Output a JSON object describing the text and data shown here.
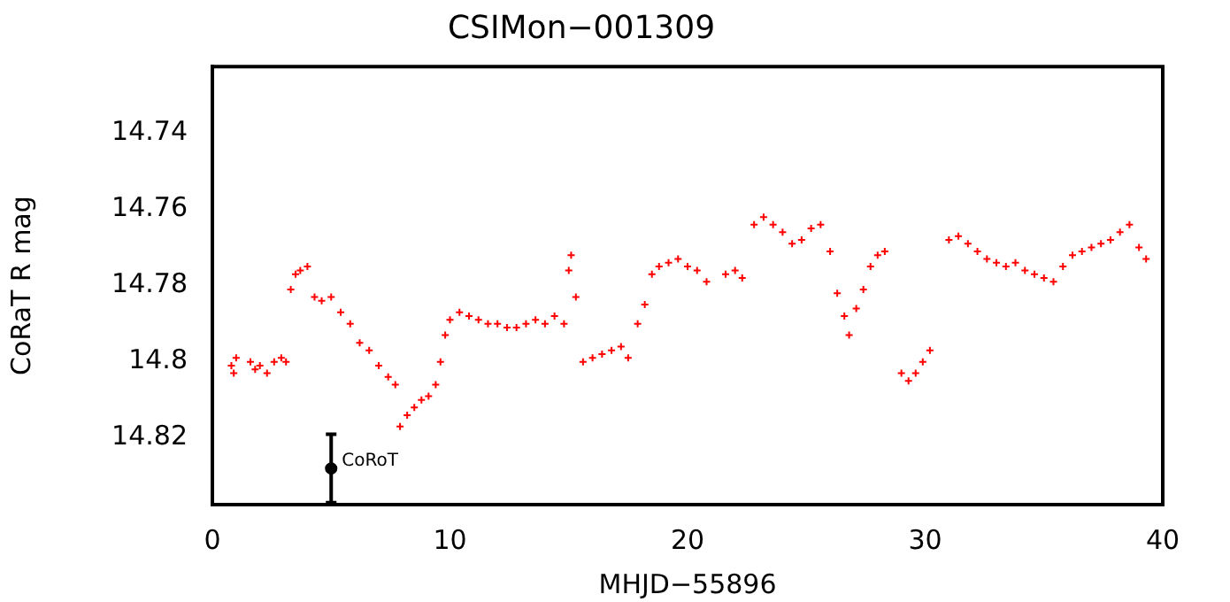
{
  "chart_data": {
    "type": "scatter",
    "title": "CSIMon−001309",
    "xlabel": "MHJD−55896",
    "ylabel": "CoRaT R mag",
    "xlim": [
      0,
      40
    ],
    "xticks": [
      0,
      10,
      20,
      30,
      40
    ],
    "ylim": [
      14.8375,
      14.7225
    ],
    "yticks": [
      14.74,
      14.76,
      14.78,
      14.8,
      14.82
    ],
    "marker": "cross",
    "series": [
      {
        "color": "#ff0000",
        "x": [
          0.8,
          0.9,
          1.0,
          1.6,
          1.8,
          2.0,
          2.3,
          2.6,
          2.9,
          3.1,
          3.3,
          3.5,
          3.7,
          4.0,
          4.3,
          4.6,
          5.0,
          5.4,
          5.8,
          6.2,
          6.6,
          7.0,
          7.4,
          7.7,
          7.9,
          8.2,
          8.5,
          8.8,
          9.1,
          9.4,
          9.6,
          9.8,
          10.0,
          10.4,
          10.8,
          11.2,
          11.6,
          12.0,
          12.4,
          12.8,
          13.2,
          13.6,
          14.0,
          14.4,
          14.8,
          15.0,
          15.1,
          15.3,
          15.6,
          16.0,
          16.4,
          16.8,
          17.2,
          17.5,
          17.9,
          18.2,
          18.5,
          18.8,
          19.2,
          19.6,
          20.0,
          20.4,
          20.8,
          21.6,
          22.0,
          22.3,
          22.8,
          23.2,
          23.6,
          24.0,
          24.4,
          24.8,
          25.2,
          25.6,
          26.0,
          26.3,
          26.6,
          26.8,
          27.1,
          27.4,
          27.7,
          28.0,
          28.3,
          29.0,
          29.3,
          29.6,
          29.9,
          30.2,
          31.0,
          31.4,
          31.8,
          32.2,
          32.6,
          33.0,
          33.4,
          33.8,
          34.2,
          34.6,
          35.0,
          35.4,
          35.8,
          36.2,
          36.6,
          37.0,
          37.4,
          37.8,
          38.2,
          38.6,
          39.0,
          39.3
        ],
        "values": [
          14.801,
          14.803,
          14.799,
          14.8,
          14.802,
          14.801,
          14.803,
          14.8,
          14.799,
          14.8,
          14.781,
          14.777,
          14.776,
          14.775,
          14.783,
          14.784,
          14.783,
          14.787,
          14.79,
          14.795,
          14.797,
          14.801,
          14.804,
          14.806,
          14.817,
          14.814,
          14.812,
          14.81,
          14.809,
          14.806,
          14.8,
          14.793,
          14.789,
          14.787,
          14.788,
          14.789,
          14.79,
          14.79,
          14.791,
          14.791,
          14.79,
          14.789,
          14.79,
          14.788,
          14.79,
          14.776,
          14.772,
          14.783,
          14.8,
          14.799,
          14.798,
          14.797,
          14.796,
          14.799,
          14.79,
          14.785,
          14.777,
          14.775,
          14.774,
          14.773,
          14.775,
          14.776,
          14.779,
          14.777,
          14.776,
          14.778,
          14.764,
          14.762,
          14.764,
          14.766,
          14.769,
          14.768,
          14.765,
          14.764,
          14.771,
          14.782,
          14.788,
          14.793,
          14.786,
          14.781,
          14.775,
          14.772,
          14.771,
          14.803,
          14.805,
          14.803,
          14.8,
          14.797,
          14.768,
          14.767,
          14.769,
          14.771,
          14.773,
          14.774,
          14.775,
          14.774,
          14.776,
          14.777,
          14.778,
          14.779,
          14.775,
          14.772,
          14.771,
          14.77,
          14.769,
          14.768,
          14.766,
          14.764,
          14.77,
          14.773
        ]
      },
      {
        "name": "CoRoT",
        "color": "#000000",
        "marker": "circle",
        "x": [
          5
        ],
        "values": [
          14.828
        ],
        "errors": [
          0.009
        ]
      }
    ]
  }
}
